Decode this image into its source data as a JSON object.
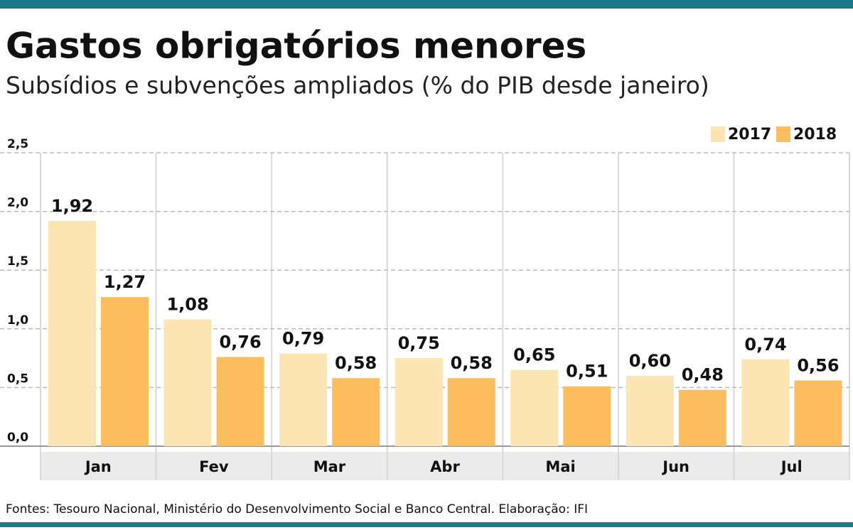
{
  "chart_data": {
    "type": "bar",
    "title": "Gastos obrigatórios menores",
    "subtitle": "Subsídios e subvenções ampliados (% do PIB desde janeiro)",
    "source": "Fontes: Tesouro Nacional, Ministério do Desenvolvimento Social e Banco Central. Elaboração: IFI",
    "categories": [
      "Jan",
      "Fev",
      "Mar",
      "Abr",
      "Mai",
      "Jun",
      "Jul"
    ],
    "series": [
      {
        "name": "2017",
        "color": "#fde4b3",
        "values": [
          1.92,
          1.08,
          0.79,
          0.75,
          0.65,
          0.6,
          0.74
        ],
        "value_labels": [
          "1,92",
          "1,08",
          "0,79",
          "0,75",
          "0,65",
          "0,60",
          "0,74"
        ]
      },
      {
        "name": "2018",
        "color": "#fbbd5e",
        "values": [
          1.27,
          0.76,
          0.58,
          0.58,
          0.51,
          0.48,
          0.56
        ],
        "value_labels": [
          "1,27",
          "0,76",
          "0,58",
          "0,58",
          "0,51",
          "0,48",
          "0,56"
        ]
      }
    ],
    "ylim": [
      0,
      2.5
    ],
    "yticks": [
      {
        "value": 0,
        "label": "0,0"
      },
      {
        "value": 0.5,
        "label": "0,5"
      },
      {
        "value": 1,
        "label": "1,0"
      },
      {
        "value": 1.5,
        "label": "1,5"
      },
      {
        "value": 2,
        "label": "2,0"
      },
      {
        "value": 2.5,
        "label": "2,5"
      }
    ],
    "grid": true,
    "legend": "top-right"
  }
}
